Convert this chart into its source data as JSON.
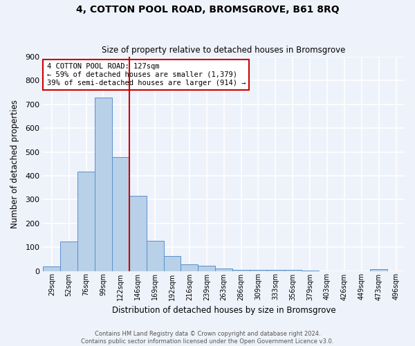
{
  "title_line1": "4, COTTON POOL ROAD, BROMSGROVE, B61 8RQ",
  "title_line2": "Size of property relative to detached houses in Bromsgrove",
  "xlabel": "Distribution of detached houses by size in Bromsgrove",
  "ylabel": "Number of detached properties",
  "categories": [
    "29sqm",
    "52sqm",
    "76sqm",
    "99sqm",
    "122sqm",
    "146sqm",
    "169sqm",
    "192sqm",
    "216sqm",
    "239sqm",
    "263sqm",
    "286sqm",
    "309sqm",
    "333sqm",
    "356sqm",
    "379sqm",
    "403sqm",
    "426sqm",
    "449sqm",
    "473sqm",
    "496sqm"
  ],
  "values": [
    18,
    125,
    418,
    730,
    478,
    315,
    128,
    63,
    27,
    22,
    10,
    5,
    5,
    5,
    3,
    1,
    0,
    0,
    0,
    8,
    0
  ],
  "bar_color": "#b8d0e8",
  "bar_edge_color": "#5b8fc9",
  "vline_x_idx": 4,
  "vline_color": "#cc0000",
  "annotation_text": "4 COTTON POOL ROAD: 127sqm\n← 59% of detached houses are smaller (1,379)\n39% of semi-detached houses are larger (914) →",
  "annotation_box_color": "#ffffff",
  "annotation_box_edge": "#cc0000",
  "background_color": "#eef2fb",
  "grid_color": "#ffffff",
  "footer_line1": "Contains HM Land Registry data © Crown copyright and database right 2024.",
  "footer_line2": "Contains public sector information licensed under the Open Government Licence v3.0.",
  "ylim": [
    0,
    900
  ],
  "yticks": [
    0,
    100,
    200,
    300,
    400,
    500,
    600,
    700,
    800,
    900
  ],
  "fig_width": 6.0,
  "fig_height": 5.0,
  "dpi": 100
}
